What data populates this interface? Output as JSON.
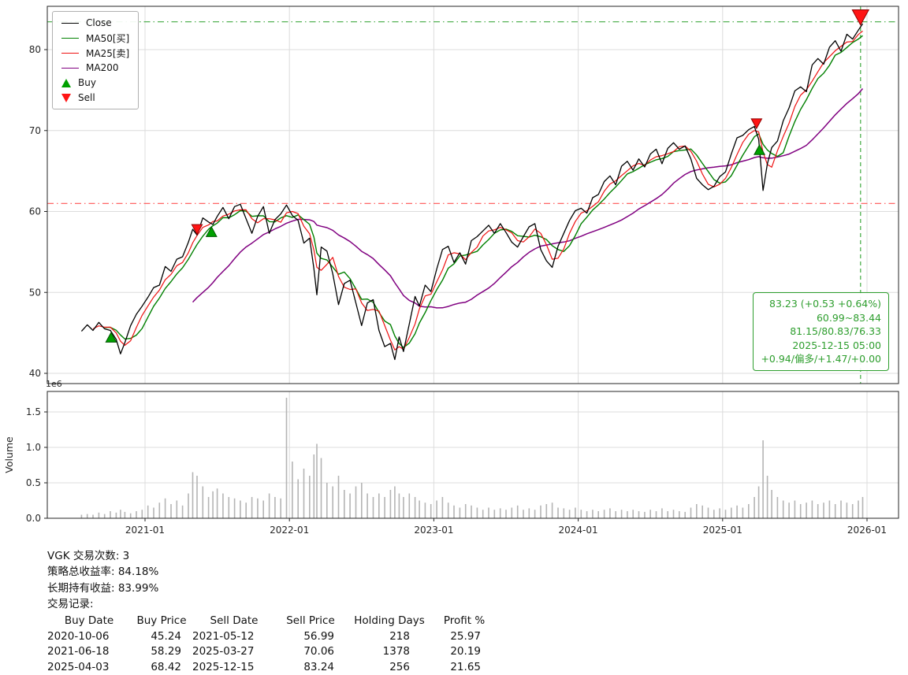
{
  "chart_data": {
    "type": "line",
    "title": "",
    "x_axis": {
      "ticks": [
        2021,
        2022,
        2023,
        2024,
        2025,
        2026
      ],
      "tick_labels": [
        "2021-01",
        "2022-01",
        "2023-01",
        "2024-01",
        "2025-01",
        "2026-01"
      ],
      "range": [
        2020.32,
        2026.22
      ]
    },
    "price_axis": {
      "ticks": [
        40,
        50,
        60,
        70,
        80
      ],
      "range": [
        38.6,
        85.4
      ]
    },
    "volume_axis": {
      "ticks": [
        0.0,
        0.5,
        1.0,
        1.5
      ],
      "label": "Volume",
      "multiplier_label": "1e6",
      "range": [
        0,
        1.8
      ]
    },
    "grid": true,
    "x": [
      2020.56,
      2020.6,
      2020.64,
      2020.68,
      2020.72,
      2020.76,
      2020.8,
      2020.83,
      2020.86,
      2020.9,
      2020.94,
      2020.98,
      2021.02,
      2021.06,
      2021.1,
      2021.14,
      2021.18,
      2021.22,
      2021.26,
      2021.3,
      2021.33,
      2021.36,
      2021.4,
      2021.44,
      2021.47,
      2021.5,
      2021.54,
      2021.58,
      2021.62,
      2021.66,
      2021.7,
      2021.74,
      2021.78,
      2021.82,
      2021.86,
      2021.9,
      2021.94,
      2021.98,
      2022.02,
      2022.06,
      2022.1,
      2022.14,
      2022.17,
      2022.19,
      2022.22,
      2022.26,
      2022.3,
      2022.34,
      2022.38,
      2022.42,
      2022.46,
      2022.5,
      2022.54,
      2022.58,
      2022.62,
      2022.66,
      2022.7,
      2022.73,
      2022.76,
      2022.79,
      2022.83,
      2022.87,
      2022.9,
      2022.94,
      2022.98,
      2023.02,
      2023.06,
      2023.1,
      2023.14,
      2023.18,
      2023.22,
      2023.26,
      2023.3,
      2023.34,
      2023.38,
      2023.42,
      2023.46,
      2023.5,
      2023.54,
      2023.58,
      2023.62,
      2023.66,
      2023.7,
      2023.74,
      2023.78,
      2023.82,
      2023.86,
      2023.9,
      2023.94,
      2023.98,
      2024.02,
      2024.06,
      2024.1,
      2024.14,
      2024.18,
      2024.22,
      2024.26,
      2024.3,
      2024.34,
      2024.38,
      2024.42,
      2024.46,
      2024.5,
      2024.54,
      2024.58,
      2024.62,
      2024.66,
      2024.7,
      2024.74,
      2024.78,
      2024.82,
      2024.86,
      2024.9,
      2024.94,
      2024.98,
      2025.02,
      2025.06,
      2025.1,
      2025.14,
      2025.18,
      2025.22,
      2025.25,
      2025.28,
      2025.31,
      2025.34,
      2025.38,
      2025.42,
      2025.46,
      2025.5,
      2025.54,
      2025.58,
      2025.62,
      2025.66,
      2025.7,
      2025.74,
      2025.78,
      2025.82,
      2025.86,
      2025.9,
      2025.94,
      2025.97
    ],
    "series": [
      {
        "name": "Close",
        "color": "#000000",
        "values": [
          45.2,
          46.0,
          45.3,
          46.3,
          45.5,
          45.3,
          44.2,
          42.4,
          43.8,
          45.9,
          47.3,
          48.3,
          49.4,
          50.6,
          50.9,
          53.2,
          52.6,
          54.1,
          54.4,
          56.2,
          57.8,
          57.1,
          59.2,
          58.7,
          58.4,
          59.4,
          60.5,
          59.1,
          60.6,
          60.9,
          59.1,
          57.3,
          59.4,
          60.6,
          57.3,
          59.0,
          59.7,
          60.8,
          59.5,
          58.9,
          56.1,
          56.7,
          52.9,
          49.7,
          55.6,
          55.1,
          52.3,
          48.5,
          51.1,
          51.5,
          48.7,
          45.9,
          48.7,
          49.1,
          45.3,
          43.3,
          43.7,
          41.7,
          44.5,
          42.7,
          46.1,
          49.5,
          48.3,
          50.9,
          50.1,
          52.9,
          55.3,
          55.7,
          53.7,
          54.9,
          53.5,
          56.4,
          56.9,
          57.6,
          58.3,
          57.3,
          58.5,
          57.4,
          56.2,
          55.6,
          56.9,
          58.1,
          58.5,
          55.3,
          53.9,
          53.1,
          55.7,
          57.3,
          58.9,
          60.1,
          60.4,
          59.8,
          61.7,
          62.1,
          63.7,
          64.4,
          63.3,
          65.6,
          66.2,
          65.1,
          66.5,
          65.5,
          67.1,
          67.7,
          65.9,
          67.8,
          68.5,
          67.7,
          68.1,
          66.5,
          64.1,
          63.3,
          62.7,
          63.1,
          64.3,
          64.9,
          67.1,
          69.1,
          69.4,
          70.1,
          70.5,
          68.9,
          62.6,
          65.9,
          67.9,
          68.7,
          71.2,
          72.8,
          74.9,
          75.4,
          74.8,
          78.1,
          78.9,
          78.2,
          80.3,
          81.1,
          79.8,
          81.9,
          81.3,
          82.4,
          83.2
        ]
      },
      {
        "name": "MA50[买]",
        "color": "#008000",
        "rolling_window_points": 5
      },
      {
        "name": "MA25[卖]",
        "color": "#ee1111",
        "rolling_window_points": 3
      },
      {
        "name": "MA200",
        "color": "#800080",
        "rolling_window_points": 21
      }
    ],
    "volume": {
      "color": "#b4b4b4",
      "values": [
        0.05,
        0.06,
        0.05,
        0.08,
        0.06,
        0.1,
        0.08,
        0.12,
        0.09,
        0.07,
        0.1,
        0.12,
        0.18,
        0.15,
        0.22,
        0.28,
        0.2,
        0.25,
        0.18,
        0.35,
        0.65,
        0.6,
        0.45,
        0.3,
        0.38,
        0.42,
        0.35,
        0.3,
        0.28,
        0.25,
        0.22,
        0.3,
        0.28,
        0.25,
        0.35,
        0.3,
        0.28,
        1.7,
        0.8,
        0.55,
        0.7,
        0.6,
        0.9,
        1.05,
        0.85,
        0.5,
        0.45,
        0.6,
        0.4,
        0.35,
        0.45,
        0.5,
        0.35,
        0.3,
        0.35,
        0.3,
        0.4,
        0.45,
        0.35,
        0.3,
        0.35,
        0.3,
        0.25,
        0.22,
        0.2,
        0.25,
        0.3,
        0.22,
        0.18,
        0.15,
        0.2,
        0.18,
        0.15,
        0.12,
        0.15,
        0.12,
        0.14,
        0.12,
        0.15,
        0.18,
        0.12,
        0.14,
        0.12,
        0.18,
        0.2,
        0.22,
        0.15,
        0.14,
        0.12,
        0.15,
        0.12,
        0.1,
        0.12,
        0.1,
        0.12,
        0.14,
        0.1,
        0.12,
        0.1,
        0.12,
        0.1,
        0.09,
        0.12,
        0.1,
        0.14,
        0.1,
        0.12,
        0.1,
        0.09,
        0.15,
        0.2,
        0.18,
        0.15,
        0.12,
        0.14,
        0.12,
        0.15,
        0.18,
        0.15,
        0.2,
        0.3,
        0.45,
        1.1,
        0.6,
        0.4,
        0.3,
        0.25,
        0.22,
        0.25,
        0.2,
        0.22,
        0.25,
        0.2,
        0.22,
        0.25,
        0.2,
        0.25,
        0.22,
        0.2,
        0.25,
        0.3
      ]
    },
    "buy_style": {
      "fill": "#00a000",
      "edge": "#005500"
    },
    "sell_style": {
      "fill": "#ff1414",
      "edge": "#8f0000"
    },
    "buy_markers": [
      {
        "x": 2020.765,
        "price": 45.24
      },
      {
        "x": 2021.46,
        "price": 58.29
      },
      {
        "x": 2025.255,
        "price": 68.42
      }
    ],
    "sell_markers": [
      {
        "x": 2021.36,
        "price": 56.99
      },
      {
        "x": 2025.235,
        "price": 70.06
      },
      {
        "x": 2025.955,
        "price": 83.24,
        "large": true
      }
    ],
    "hlines": [
      {
        "value": 83.44,
        "color": "#2ca02c",
        "style": "dashdot"
      },
      {
        "value": 60.99,
        "color": "#ff4040",
        "style": "dashdot"
      }
    ],
    "vlines": [
      {
        "x": 2025.955,
        "color": "#2ca02c",
        "style": "dashed"
      }
    ],
    "legend": [
      {
        "label": "Close",
        "color": "#000000",
        "glyph": "line"
      },
      {
        "label": "MA50[买]",
        "color": "#008000",
        "glyph": "line"
      },
      {
        "label": "MA25[卖]",
        "color": "#ee1111",
        "glyph": "line"
      },
      {
        "label": "MA200",
        "color": "#800080",
        "glyph": "line"
      },
      {
        "label": "Buy",
        "color": "#00a000",
        "glyph": "triangle-up"
      },
      {
        "label": "Sell",
        "color": "#ff1414",
        "glyph": "triangle-down"
      }
    ],
    "annotation": {
      "color": "#2e9e2e",
      "lines": [
        "83.23 (+0.53 +0.64%)",
        "60.99~83.44",
        "81.15/80.83/76.33",
        "2025-12-15 05:00",
        "+0.94/偏多/+1.47/+0.00"
      ]
    },
    "colors": {
      "grid": "#dcdcdc",
      "axis": "#262626"
    }
  },
  "summary": {
    "trade_count_line": "VGK 交易次数: 3",
    "strategy_return_line": "策略总收益率: 84.18%",
    "buy_hold_return_line": "长期持有收益: 83.99%",
    "trade_log_label": "交易记录:",
    "table": {
      "columns": [
        "Buy Date",
        "Buy Price",
        "Sell Date",
        "Sell Price",
        "Holding Days",
        "Profit %"
      ],
      "rows": [
        [
          "2020-10-06",
          "45.24",
          "2021-05-12",
          "56.99",
          "218",
          "25.97"
        ],
        [
          "2021-06-18",
          "58.29",
          "2025-03-27",
          "70.06",
          "1378",
          "20.19"
        ],
        [
          "2025-04-03",
          "68.42",
          "2025-12-15",
          "83.24",
          "256",
          "21.65"
        ]
      ]
    }
  }
}
